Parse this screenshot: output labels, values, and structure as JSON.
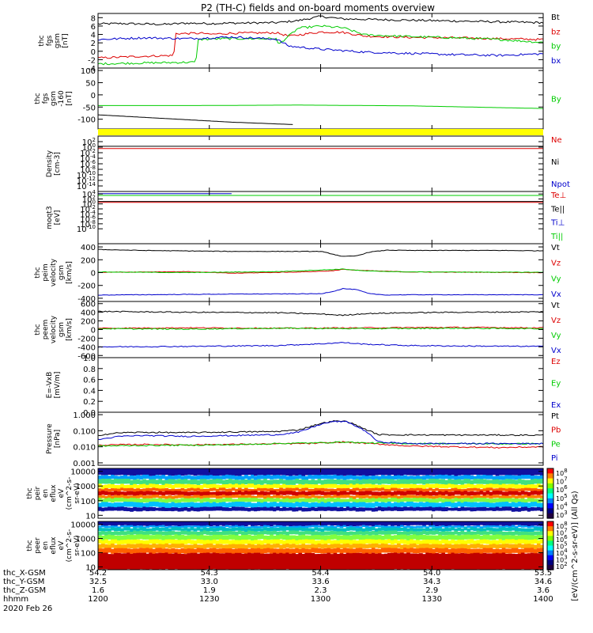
{
  "title": "P2 (TH-C) fields and on-board moments overview",
  "footer": {
    "rows": [
      {
        "label": "thc_X-GSM",
        "values": [
          "54.2",
          "54.3",
          "54.4",
          "54.0",
          "53.5"
        ]
      },
      {
        "label": "thc_Y-GSM",
        "values": [
          "32.5",
          "33.0",
          "33.6",
          "34.3",
          "34.6"
        ]
      },
      {
        "label": "thc_Z-GSM",
        "values": [
          "1.6",
          "1.9",
          "2.3",
          "2.9",
          "3.6"
        ]
      },
      {
        "label": "hhmm",
        "values": [
          "1200",
          "1230",
          "1300",
          "1330",
          "1400"
        ]
      }
    ],
    "date": "2020 Feb 26"
  },
  "colorbar_label": "[eV/(cm^2-s-sr-eV)] (All Qs)",
  "chart_data": [
    {
      "type": "line",
      "id": "fgs",
      "ylabel": [
        "thc",
        "fgs",
        "gsm",
        "[nT]"
      ],
      "ylim": [
        -4,
        9
      ],
      "yticks": [
        "-4",
        "-2",
        "0",
        "2",
        "4",
        "6",
        "8"
      ],
      "yticks_values": [
        -4,
        -2,
        0,
        2,
        4,
        6,
        8
      ],
      "series": [
        {
          "name": "Bt",
          "color": "#000000",
          "x": [
            0,
            5,
            15,
            20,
            25,
            30,
            40,
            45,
            50,
            55,
            60,
            70,
            80,
            90,
            100
          ],
          "y": [
            6.5,
            6.6,
            6.4,
            6.7,
            6.6,
            6.7,
            6.8,
            7.3,
            8.3,
            7.7,
            7.6,
            7.4,
            7.2,
            7.0,
            6.8
          ]
        },
        {
          "name": "bz",
          "color": "#dd0000",
          "x": [
            0,
            10,
            17,
            17.5,
            24,
            24.5,
            30,
            40,
            43,
            50,
            55,
            60,
            70,
            80,
            90,
            100
          ],
          "y": [
            -1.6,
            -1.2,
            -1.0,
            4.2,
            4.3,
            4.0,
            4.3,
            4.4,
            3.6,
            4.6,
            4.5,
            3.6,
            3.3,
            3.2,
            3.0,
            2.8
          ]
        },
        {
          "name": "by",
          "color": "#00cc00",
          "x": [
            0,
            10,
            22,
            22.5,
            28,
            40,
            40.5,
            45,
            50,
            55,
            60,
            70,
            80,
            90,
            100
          ],
          "y": [
            -3.0,
            -2.8,
            -2.6,
            2.8,
            3.0,
            3.0,
            1.6,
            5.5,
            6.0,
            5.6,
            3.9,
            3.5,
            3.2,
            2.8,
            2.1
          ]
        },
        {
          "name": "bx",
          "color": "#0000cc",
          "x": [
            0,
            10,
            20,
            30,
            40,
            43,
            50,
            60,
            70,
            80,
            90,
            100
          ],
          "y": [
            2.8,
            3.2,
            3.0,
            3.4,
            2.9,
            1.2,
            0.5,
            -0.2,
            -0.5,
            -0.8,
            -1.0,
            -0.6
          ]
        }
      ]
    },
    {
      "type": "line",
      "id": "fgs-offset",
      "ylabel": [
        "thc",
        "fgs",
        "gsm",
        "-160",
        "[nT]"
      ],
      "ylim": [
        -140,
        110
      ],
      "yticks": [
        "-100",
        "-50",
        "0",
        "50",
        "100"
      ],
      "yticks_values": [
        -100,
        -50,
        0,
        50,
        100
      ],
      "series": [
        {
          "name": "By",
          "color": "#00cc00",
          "x": [
            0,
            20,
            45,
            70,
            100
          ],
          "y": [
            -44,
            -44,
            -42,
            -45,
            -56
          ]
        },
        {
          "name": "",
          "color": "#000000",
          "x": [
            0,
            10,
            20,
            30,
            44
          ],
          "y": [
            -82,
            -92,
            -102,
            -112,
            -122
          ]
        }
      ]
    },
    {
      "type": "line",
      "id": "density",
      "ylabel": [
        "Density",
        "[cm-3]"
      ],
      "log": true,
      "ylim_exp": [
        -16,
        4
      ],
      "yticks": [
        "10^2",
        "10^0",
        "10^-2",
        "10^-4",
        "10^-6",
        "10^-8",
        "10^-10",
        "10^-12",
        "10^-14"
      ],
      "yticks_exp": [
        2,
        0,
        -2,
        -4,
        -6,
        -8,
        -10,
        -12,
        -14
      ],
      "legend": [
        {
          "name": "Ne",
          "color": "#dd0000"
        },
        {
          "name": "Ni",
          "color": "#000000"
        },
        {
          "name": "Npot",
          "color": "#0000cc"
        }
      ],
      "series": [
        {
          "name": "Ni",
          "color": "#000000",
          "x": [
            0,
            100
          ],
          "y": [
            0.3,
            0.3
          ]
        },
        {
          "name": "Ne",
          "color": "#dd0000",
          "x": [
            0,
            100
          ],
          "y": [
            -0.5,
            -0.5
          ]
        }
      ]
    },
    {
      "type": "line",
      "id": "temperature",
      "ylabel": [
        "moqt3",
        "[eV]"
      ],
      "log": true,
      "ylim_exp": [
        -16,
        5
      ],
      "yticks": [
        "10^4",
        "10^2",
        "10^0",
        "10^-2",
        "10^-4",
        "10^-6",
        "10^-8",
        "10^-10"
      ],
      "yticks_exp": [
        4,
        2,
        0,
        -2,
        -4,
        -6,
        -8,
        -10
      ],
      "legend": [
        {
          "name": "Te⊥",
          "color": "#dd0000"
        },
        {
          "name": "Te||",
          "color": "#000000"
        },
        {
          "name": "Ti⊥",
          "color": "#0000cc"
        },
        {
          "name": "Ti||",
          "color": "#00cc00"
        }
      ],
      "series": [
        {
          "name": "Ti⊥",
          "color": "#0000cc",
          "x": [
            0,
            30
          ],
          "y": [
            4.1,
            4.1
          ]
        },
        {
          "name": "Ti||",
          "color": "#00cc00",
          "x": [
            0,
            100
          ],
          "y": [
            3.4,
            3.4
          ]
        },
        {
          "name": "Te||",
          "color": "#000000",
          "x": [
            0,
            100
          ],
          "y": [
            1.0,
            1.0
          ]
        },
        {
          "name": "Te⊥",
          "color": "#dd0000",
          "x": [
            0,
            100
          ],
          "y": [
            0.6,
            0.6
          ]
        }
      ]
    },
    {
      "type": "line",
      "id": "peim-velocity",
      "ylabel": [
        "thc",
        "peim",
        "velocity",
        "gsm",
        "[km/s]"
      ],
      "ylim": [
        -450,
        450
      ],
      "yticks": [
        "-400",
        "-200",
        "0",
        "200",
        "400"
      ],
      "yticks_values": [
        -400,
        -200,
        0,
        200,
        400
      ],
      "series": [
        {
          "name": "Vt",
          "color": "#000000",
          "x": [
            0,
            10,
            30,
            50,
            52,
            55,
            58,
            61,
            65,
            70,
            80,
            90,
            100
          ],
          "y": [
            360,
            345,
            330,
            330,
            300,
            250,
            260,
            320,
            350,
            345,
            345,
            345,
            340
          ]
        },
        {
          "name": "Vz",
          "color": "#dd0000",
          "x": [
            0,
            20,
            30,
            45,
            52,
            55,
            60,
            70,
            100
          ],
          "y": [
            5,
            15,
            -10,
            10,
            25,
            50,
            30,
            10,
            0
          ]
        },
        {
          "name": "Vy",
          "color": "#00cc00",
          "x": [
            0,
            20,
            40,
            52,
            55,
            60,
            70,
            100
          ],
          "y": [
            10,
            0,
            15,
            45,
            55,
            25,
            10,
            5
          ]
        },
        {
          "name": "Vx",
          "color": "#0000cc",
          "x": [
            0,
            10,
            30,
            50,
            53,
            55,
            58,
            61,
            65,
            70,
            80,
            100
          ],
          "y": [
            -350,
            -345,
            -335,
            -330,
            -290,
            -250,
            -265,
            -330,
            -350,
            -345,
            -345,
            -345
          ]
        }
      ]
    },
    {
      "type": "line",
      "id": "peem-velocity",
      "ylabel": [
        "thc",
        "peem",
        "velocity",
        "gsm",
        "[km/s]"
      ],
      "ylim": [
        -650,
        650
      ],
      "yticks": [
        "-600",
        "-400",
        "-200",
        "0",
        "200",
        "400",
        "600"
      ],
      "yticks_values": [
        -600,
        -400,
        -200,
        0,
        200,
        400,
        600
      ],
      "series": [
        {
          "name": "Vt",
          "color": "#000000",
          "x": [
            0,
            20,
            40,
            50,
            55,
            60,
            70,
            80,
            100
          ],
          "y": [
            420,
            400,
            390,
            360,
            330,
            370,
            390,
            400,
            410
          ]
        },
        {
          "name": "Vz",
          "color": "#dd0000",
          "x": [
            0,
            20,
            40,
            60,
            80,
            100
          ],
          "y": [
            30,
            40,
            30,
            40,
            50,
            40
          ]
        },
        {
          "name": "Vy",
          "color": "#00cc00",
          "x": [
            0,
            20,
            40,
            60,
            80,
            100
          ],
          "y": [
            20,
            10,
            30,
            20,
            30,
            20
          ]
        },
        {
          "name": "Vx",
          "color": "#0000cc",
          "x": [
            0,
            20,
            40,
            50,
            55,
            60,
            70,
            80,
            100
          ],
          "y": [
            -400,
            -390,
            -370,
            -330,
            -300,
            -340,
            -370,
            -380,
            -390
          ]
        }
      ]
    },
    {
      "type": "line",
      "id": "efield",
      "ylabel": [
        "E=-VxB",
        "[mV/m]"
      ],
      "ylim": [
        0,
        1.0
      ],
      "yticks": [
        "0.0",
        "0.2",
        "0.4",
        "0.6",
        "0.8",
        "1.0"
      ],
      "yticks_values": [
        0.0,
        0.2,
        0.4,
        0.6,
        0.8,
        1.0
      ],
      "legend": [
        {
          "name": "Ez",
          "color": "#dd0000"
        },
        {
          "name": "Ey",
          "color": "#00cc00"
        },
        {
          "name": "Ex",
          "color": "#0000cc"
        }
      ],
      "series": []
    },
    {
      "type": "line",
      "id": "pressure",
      "ylabel": [
        "Pressure",
        "[nPa]"
      ],
      "log": true,
      "ylim_exp": [
        -3.15,
        0.15
      ],
      "yticks": [
        "0.001",
        "0.010",
        "0.100",
        "1.000"
      ],
      "yticks_exp": [
        -3,
        -2,
        -1,
        0
      ],
      "series": [
        {
          "name": "Pt",
          "color": "#000000",
          "x": [
            0,
            5,
            10,
            20,
            30,
            40,
            45,
            50,
            53,
            56,
            60,
            63,
            70,
            80,
            90,
            100
          ],
          "y": [
            -1.28,
            -1.12,
            -1.1,
            -1.12,
            -1.08,
            -1.05,
            -0.95,
            -0.55,
            -0.4,
            -0.42,
            -0.9,
            -1.25,
            -1.26,
            -1.27,
            -1.27,
            -1.28
          ]
        },
        {
          "name": "Pb",
          "color": "#dd0000",
          "x": [
            0,
            10,
            20,
            30,
            40,
            50,
            55,
            60,
            70,
            80,
            90,
            100
          ],
          "y": [
            -1.9,
            -1.85,
            -1.88,
            -1.85,
            -1.82,
            -1.78,
            -1.7,
            -1.78,
            -1.95,
            -2.0,
            -2.05,
            -2.0
          ]
        },
        {
          "name": "Pe",
          "color": "#00cc00",
          "x": [
            0,
            10,
            20,
            30,
            40,
            50,
            55,
            60,
            70,
            80,
            90,
            100
          ],
          "y": [
            -1.95,
            -1.92,
            -1.9,
            -1.88,
            -1.8,
            -1.75,
            -1.7,
            -1.76,
            -1.8,
            -1.8,
            -1.82,
            -1.8
          ]
        },
        {
          "name": "Pi",
          "color": "#0000cc",
          "x": [
            0,
            5,
            10,
            20,
            30,
            40,
            45,
            50,
            53,
            56,
            60,
            63,
            70,
            80,
            90,
            100
          ],
          "y": [
            -1.55,
            -1.35,
            -1.3,
            -1.35,
            -1.3,
            -1.25,
            -1.1,
            -0.6,
            -0.42,
            -0.45,
            -1.0,
            -1.7,
            -1.8,
            -1.8,
            -1.8,
            -1.8
          ]
        }
      ]
    },
    {
      "type": "heatmap",
      "id": "peir-spec",
      "ylabel": [
        "thc",
        "peir",
        "en",
        "eflux",
        "eV",
        "(cm^2-s-",
        "sr-eV)"
      ],
      "log": true,
      "ylim_exp": [
        0.8,
        4.2
      ],
      "yticks": [
        "10",
        "100",
        "1000",
        "10000"
      ],
      "yticks_exp": [
        1,
        2,
        3,
        4
      ],
      "colorbar_ticks": [
        "10^8",
        "10^7",
        "10^6",
        "10^5",
        "10^4",
        "10^3"
      ]
    },
    {
      "type": "heatmap",
      "id": "peer-spec",
      "ylabel": [
        "thc",
        "peer",
        "en",
        "eflux",
        "eV",
        "(cm^2-s-",
        "sr-eV)"
      ],
      "log": true,
      "ylim_exp": [
        0.8,
        4.2
      ],
      "yticks": [
        "10",
        "100",
        "1000",
        "10000"
      ],
      "yticks_exp": [
        1,
        2,
        3,
        4
      ],
      "colorbar_ticks": [
        "10^8",
        "10^7",
        "10^6",
        "10^5",
        "10^4",
        "10^3",
        "10^2"
      ]
    }
  ]
}
